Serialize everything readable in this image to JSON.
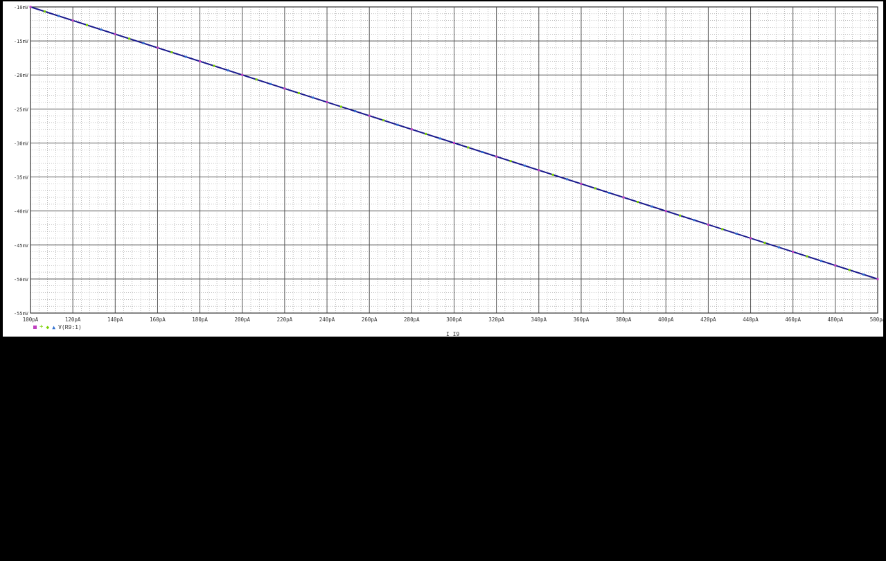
{
  "chart_data": {
    "type": "line",
    "xlabel": "I_I9",
    "ylabel": "",
    "x_ticks": [
      "100pA",
      "120pA",
      "140pA",
      "160pA",
      "180pA",
      "200pA",
      "220pA",
      "240pA",
      "260pA",
      "280pA",
      "300pA",
      "320pA",
      "340pA",
      "360pA",
      "380pA",
      "400pA",
      "420pA",
      "440pA",
      "460pA",
      "480pA",
      "500pA"
    ],
    "y_ticks": [
      "-10mV",
      "-15mV",
      "-20mV",
      "-25mV",
      "-30mV",
      "-35mV",
      "-40mV",
      "-45mV",
      "-50mV",
      "-55mV"
    ],
    "xlim": [
      100,
      500
    ],
    "ylim": [
      -55,
      -10
    ],
    "x_unit": "pA",
    "y_unit": "mV",
    "grid": true,
    "legend": {
      "symbols": [
        "square",
        "plus",
        "diamond",
        "triangle"
      ],
      "label": "V(R9:1)",
      "placement": "bottom-left"
    },
    "series": [
      {
        "name": "V(R9:1)",
        "color": "#1a1a8c",
        "x": [
          100,
          500
        ],
        "y": [
          -10,
          -50
        ]
      }
    ],
    "marker_colors": [
      "#c040c0",
      "#7ad000",
      "#3070d0"
    ]
  }
}
